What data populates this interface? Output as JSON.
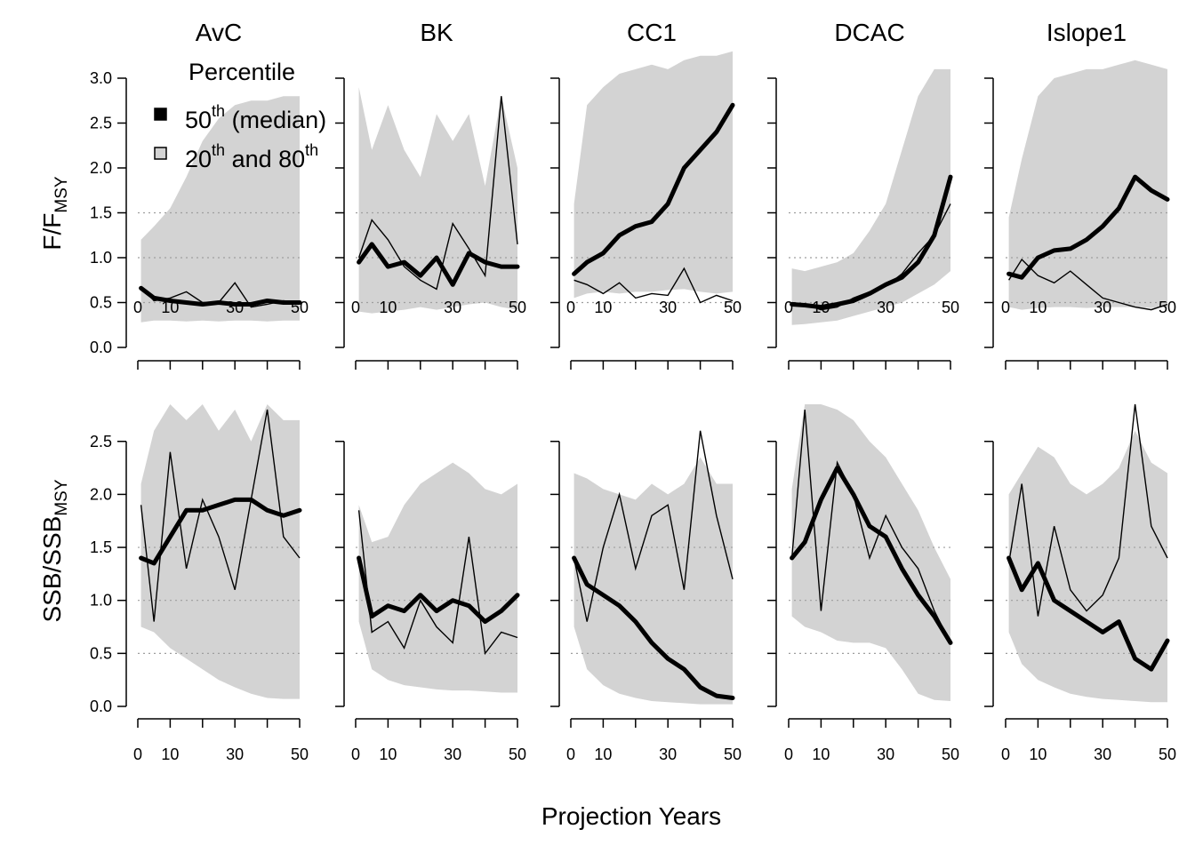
{
  "figure": {
    "xlabel": "Projection Years",
    "ylabel_top_main": "F/F",
    "ylabel_top_sub": "MSY",
    "ylabel_bottom_main": "SSB/SSB",
    "ylabel_bottom_sub": "MSY",
    "legend": {
      "title": "Percentile",
      "median_main": "50",
      "median_sup": "th",
      "median_rest": " (median)",
      "band_main": "20",
      "band_sup": "th",
      "band_mid": " and 80",
      "band_sup2": "th"
    }
  },
  "colors": {
    "band": "#d3d3d3",
    "line": "#000000",
    "refline": "#9e9e9e"
  },
  "chart_data": [
    {
      "type": "area",
      "row": "F/FMSY",
      "ref_lines": [
        0.5,
        1.0,
        1.5
      ],
      "ylim": [
        0,
        3.0
      ],
      "xlim": [
        0,
        50
      ],
      "yticks": [
        "0.0",
        "0.5",
        "1.0",
        "1.5",
        "2.0",
        "2.5",
        "3.0"
      ],
      "xticks": [
        "0",
        "10",
        "30",
        "50"
      ],
      "panels": [
        {
          "name": "AvC",
          "x": [
            1,
            5,
            10,
            15,
            20,
            25,
            30,
            35,
            40,
            45,
            50
          ],
          "lower": [
            0.28,
            0.3,
            0.3,
            0.29,
            0.3,
            0.29,
            0.3,
            0.3,
            0.29,
            0.3,
            0.3
          ],
          "upper": [
            1.2,
            1.35,
            1.55,
            1.9,
            2.3,
            2.55,
            2.7,
            2.75,
            2.75,
            2.8,
            2.8
          ],
          "median": [
            0.66,
            0.55,
            0.52,
            0.5,
            0.48,
            0.5,
            0.48,
            0.48,
            0.52,
            0.5,
            0.5
          ],
          "sims": [
            [
              0.68,
              0.52,
              0.55,
              0.62,
              0.5,
              0.5,
              0.72,
              0.45,
              0.48,
              0.52,
              0.5
            ]
          ]
        },
        {
          "name": "BK",
          "x": [
            1,
            5,
            10,
            15,
            20,
            25,
            30,
            35,
            40,
            45,
            50
          ],
          "lower": [
            0.4,
            0.38,
            0.4,
            0.42,
            0.45,
            0.42,
            0.45,
            0.48,
            0.5,
            0.45,
            0.42
          ],
          "upper": [
            2.9,
            2.2,
            2.7,
            2.2,
            1.9,
            2.6,
            2.3,
            2.6,
            1.8,
            2.8,
            2.0
          ],
          "median": [
            0.95,
            1.15,
            0.9,
            0.95,
            0.8,
            1.0,
            0.7,
            1.05,
            0.95,
            0.9,
            0.9
          ],
          "sims": [
            [
              1.0,
              1.42,
              1.2,
              0.9,
              0.75,
              0.65,
              1.38,
              1.1,
              0.8,
              2.8,
              1.15
            ]
          ]
        },
        {
          "name": "CC1",
          "x": [
            1,
            5,
            10,
            15,
            20,
            25,
            30,
            35,
            40,
            45,
            50
          ],
          "lower": [
            0.55,
            0.6,
            0.62,
            0.6,
            0.62,
            0.62,
            0.64,
            0.65,
            0.62,
            0.6,
            0.62
          ],
          "upper": [
            1.6,
            2.7,
            2.9,
            3.05,
            3.1,
            3.15,
            3.1,
            3.2,
            3.25,
            3.25,
            3.3
          ],
          "median": [
            0.82,
            0.95,
            1.05,
            1.25,
            1.35,
            1.4,
            1.6,
            2.0,
            2.2,
            2.4,
            2.7
          ],
          "sims": [
            [
              0.75,
              0.7,
              0.6,
              0.72,
              0.55,
              0.6,
              0.58,
              0.88,
              0.5,
              0.58,
              0.52
            ]
          ]
        },
        {
          "name": "DCAC",
          "x": [
            1,
            5,
            10,
            15,
            20,
            25,
            30,
            35,
            40,
            45,
            50
          ],
          "lower": [
            0.25,
            0.26,
            0.28,
            0.3,
            0.35,
            0.4,
            0.45,
            0.5,
            0.6,
            0.7,
            0.85
          ],
          "upper": [
            0.88,
            0.85,
            0.9,
            0.95,
            1.05,
            1.3,
            1.6,
            2.2,
            2.8,
            3.1,
            3.1
          ],
          "median": [
            0.48,
            0.47,
            0.45,
            0.48,
            0.52,
            0.6,
            0.7,
            0.78,
            0.95,
            1.25,
            1.9
          ],
          "sims": [
            [
              0.5,
              0.48,
              0.42,
              0.45,
              0.55,
              0.62,
              0.68,
              0.82,
              1.05,
              1.25,
              1.6
            ]
          ]
        },
        {
          "name": "Islope1",
          "x": [
            1,
            5,
            10,
            15,
            20,
            25,
            30,
            35,
            40,
            45,
            50
          ],
          "lower": [
            0.45,
            0.42,
            0.44,
            0.45,
            0.45,
            0.44,
            0.45,
            0.45,
            0.45,
            0.44,
            0.45
          ],
          "upper": [
            1.45,
            2.1,
            2.8,
            3.0,
            3.05,
            3.1,
            3.1,
            3.15,
            3.2,
            3.15,
            3.1
          ],
          "median": [
            0.82,
            0.78,
            1.0,
            1.08,
            1.1,
            1.2,
            1.35,
            1.55,
            1.9,
            1.75,
            1.65
          ],
          "sims": [
            [
              0.75,
              0.98,
              0.8,
              0.72,
              0.85,
              0.7,
              0.55,
              0.5,
              0.45,
              0.42,
              0.48
            ]
          ]
        }
      ]
    },
    {
      "type": "area",
      "row": "SSB/SSBMSY",
      "ref_lines": [
        0.5,
        1.0,
        1.5
      ],
      "ylim": [
        0,
        2.85
      ],
      "xlim": [
        0,
        50
      ],
      "yticks": [
        "0.0",
        "0.5",
        "1.0",
        "1.5",
        "2.0",
        "2.5"
      ],
      "xticks": [
        "0",
        "10",
        "30",
        "50"
      ],
      "panels": [
        {
          "name": "AvC",
          "x": [
            1,
            5,
            10,
            15,
            20,
            25,
            30,
            35,
            40,
            45,
            50
          ],
          "lower": [
            0.75,
            0.7,
            0.55,
            0.45,
            0.35,
            0.25,
            0.18,
            0.12,
            0.08,
            0.07,
            0.07
          ],
          "upper": [
            2.1,
            2.6,
            2.85,
            2.7,
            2.85,
            2.6,
            2.8,
            2.5,
            2.85,
            2.7,
            2.7
          ],
          "median": [
            1.4,
            1.35,
            1.6,
            1.85,
            1.85,
            1.9,
            1.95,
            1.95,
            1.85,
            1.8,
            1.85
          ],
          "sims": [
            [
              1.9,
              0.8,
              2.4,
              1.3,
              1.95,
              1.6,
              1.1,
              1.95,
              2.8,
              1.6,
              1.4
            ]
          ]
        },
        {
          "name": "BK",
          "x": [
            1,
            5,
            10,
            15,
            20,
            25,
            30,
            35,
            40,
            45,
            50
          ],
          "lower": [
            0.8,
            0.35,
            0.25,
            0.2,
            0.18,
            0.16,
            0.15,
            0.15,
            0.14,
            0.13,
            0.13
          ],
          "upper": [
            1.9,
            1.55,
            1.6,
            1.9,
            2.1,
            2.2,
            2.3,
            2.2,
            2.05,
            2.0,
            2.1
          ],
          "median": [
            1.4,
            0.85,
            0.95,
            0.9,
            1.05,
            0.9,
            1.0,
            0.95,
            0.8,
            0.9,
            1.05
          ],
          "sims": [
            [
              1.85,
              0.7,
              0.8,
              0.55,
              1.0,
              0.75,
              0.6,
              1.6,
              0.5,
              0.7,
              0.65
            ]
          ]
        },
        {
          "name": "CC1",
          "x": [
            1,
            5,
            10,
            15,
            20,
            25,
            30,
            35,
            40,
            45,
            50
          ],
          "lower": [
            0.75,
            0.35,
            0.2,
            0.12,
            0.08,
            0.05,
            0.04,
            0.03,
            0.02,
            0.02,
            0.02
          ],
          "upper": [
            2.2,
            2.15,
            2.05,
            2.0,
            1.95,
            2.1,
            2.0,
            2.1,
            2.35,
            2.1,
            2.1
          ],
          "median": [
            1.4,
            1.15,
            1.05,
            0.95,
            0.8,
            0.6,
            0.45,
            0.35,
            0.18,
            0.1,
            0.08
          ],
          "sims": [
            [
              1.4,
              0.8,
              1.5,
              2.0,
              1.3,
              1.8,
              1.9,
              1.1,
              2.6,
              1.8,
              1.2
            ]
          ]
        },
        {
          "name": "DCAC",
          "x": [
            1,
            5,
            10,
            15,
            20,
            25,
            30,
            35,
            40,
            45,
            50
          ],
          "lower": [
            0.85,
            0.75,
            0.7,
            0.62,
            0.6,
            0.6,
            0.55,
            0.35,
            0.12,
            0.06,
            0.05
          ],
          "upper": [
            2.05,
            2.85,
            2.85,
            2.8,
            2.7,
            2.5,
            2.35,
            2.1,
            1.85,
            1.5,
            1.2
          ],
          "median": [
            1.4,
            1.55,
            1.95,
            2.25,
            2.0,
            1.7,
            1.6,
            1.3,
            1.05,
            0.85,
            0.6
          ],
          "sims": [
            [
              1.4,
              2.8,
              0.9,
              2.3,
              2.0,
              1.4,
              1.8,
              1.5,
              1.3,
              0.9,
              0.6
            ]
          ]
        },
        {
          "name": "Islope1",
          "x": [
            1,
            5,
            10,
            15,
            20,
            25,
            30,
            35,
            40,
            45,
            50
          ],
          "lower": [
            0.7,
            0.4,
            0.25,
            0.18,
            0.12,
            0.09,
            0.07,
            0.06,
            0.05,
            0.04,
            0.04
          ],
          "upper": [
            2.0,
            2.2,
            2.45,
            2.35,
            2.1,
            2.0,
            2.1,
            2.25,
            2.6,
            2.3,
            2.2
          ],
          "median": [
            1.4,
            1.1,
            1.35,
            1.0,
            0.9,
            0.8,
            0.7,
            0.8,
            0.45,
            0.35,
            0.62
          ],
          "sims": [
            [
              1.35,
              2.1,
              0.85,
              1.7,
              1.1,
              0.9,
              1.05,
              1.4,
              2.85,
              1.7,
              1.4
            ]
          ]
        }
      ]
    }
  ]
}
